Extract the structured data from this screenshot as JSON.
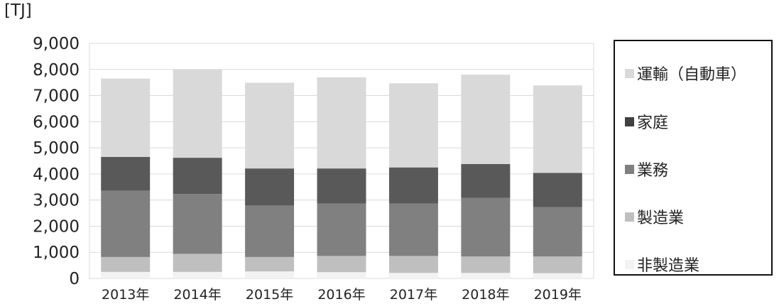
{
  "chart_data": {
    "type": "bar",
    "stacked": true,
    "unit_label": "[TJ]",
    "categories": [
      "2013年",
      "2014年",
      "2015年",
      "2016年",
      "2017年",
      "2018年",
      "2019年"
    ],
    "ylim": [
      0,
      9000
    ],
    "yticks": [
      "0",
      "1,000",
      "2,000",
      "3,000",
      "4,000",
      "5,000",
      "6,000",
      "7,000",
      "8,000",
      "9,000"
    ],
    "grid": true,
    "legend_position": "right",
    "series": [
      {
        "name": "非製造業",
        "color": "#f2f2f2",
        "values": [
          250,
          250,
          270,
          240,
          210,
          210,
          200
        ]
      },
      {
        "name": "製造業",
        "color": "#bfbfbf",
        "values": [
          570,
          690,
          550,
          620,
          650,
          630,
          640
        ]
      },
      {
        "name": "業務",
        "color": "#808080",
        "values": [
          2540,
          2290,
          1970,
          2010,
          2010,
          2240,
          1890
        ]
      },
      {
        "name": "家庭",
        "color": "#595959",
        "values": [
          1290,
          1390,
          1420,
          1340,
          1380,
          1300,
          1310
        ]
      },
      {
        "name": "運輸（自動車）",
        "color": "#d9d9d9",
        "values": [
          3000,
          3380,
          3280,
          3490,
          3220,
          3420,
          3350
        ]
      }
    ]
  },
  "legend": {
    "items": [
      "運輸（自動車）",
      "家庭",
      "業務",
      "製造業",
      "非製造業"
    ]
  }
}
